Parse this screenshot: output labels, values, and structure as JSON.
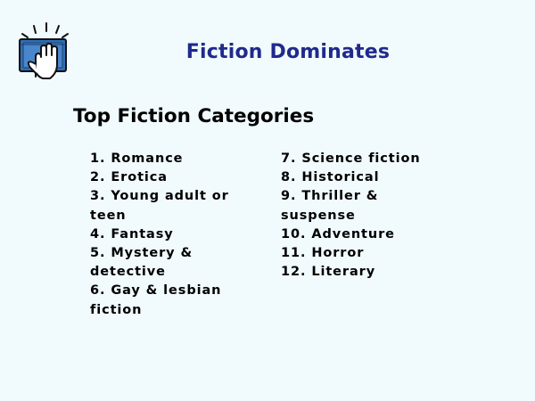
{
  "slide": {
    "title": "Fiction Dominates",
    "heading": "Top Fiction Categories",
    "logo_icon": "hand-on-book-icon",
    "colors": {
      "title": "#1f2a8c",
      "background": "#f1fafd",
      "logo_blue": "#2f6fb5"
    }
  },
  "categories": {
    "left": [
      "1. Romance",
      "2. Erotica",
      "3. Young adult or teen",
      "4. Fantasy",
      "5. Mystery & detective",
      "6. Gay & lesbian fiction"
    ],
    "right": [
      "7.  Science fiction",
      "8.  Historical",
      "9.  Thriller & suspense",
      "10. Adventure",
      "11. Horror",
      "12. Literary"
    ]
  }
}
